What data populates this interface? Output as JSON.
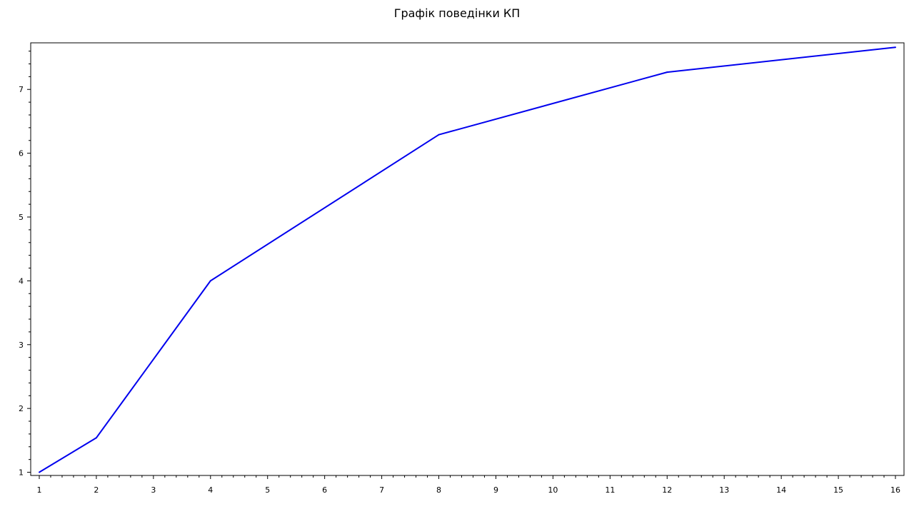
{
  "chart_data": {
    "type": "line",
    "title": "Графік поведінки КП",
    "xlabel": "",
    "ylabel": "",
    "x": [
      1,
      2,
      4,
      8,
      12,
      16
    ],
    "series": [
      {
        "values": [
          1.0,
          1.54,
          4.0,
          6.29,
          7.27,
          7.66
        ],
        "color": "#0000ee"
      }
    ],
    "xlim": [
      0.85,
      16.15
    ],
    "ylim": [
      0.95,
      7.73
    ],
    "xticks": [
      1,
      2,
      3,
      4,
      5,
      6,
      7,
      8,
      9,
      10,
      11,
      12,
      13,
      14,
      15,
      16
    ],
    "yticks": [
      1,
      2,
      3,
      4,
      5,
      6,
      7
    ],
    "grid": false,
    "legend": "none"
  }
}
